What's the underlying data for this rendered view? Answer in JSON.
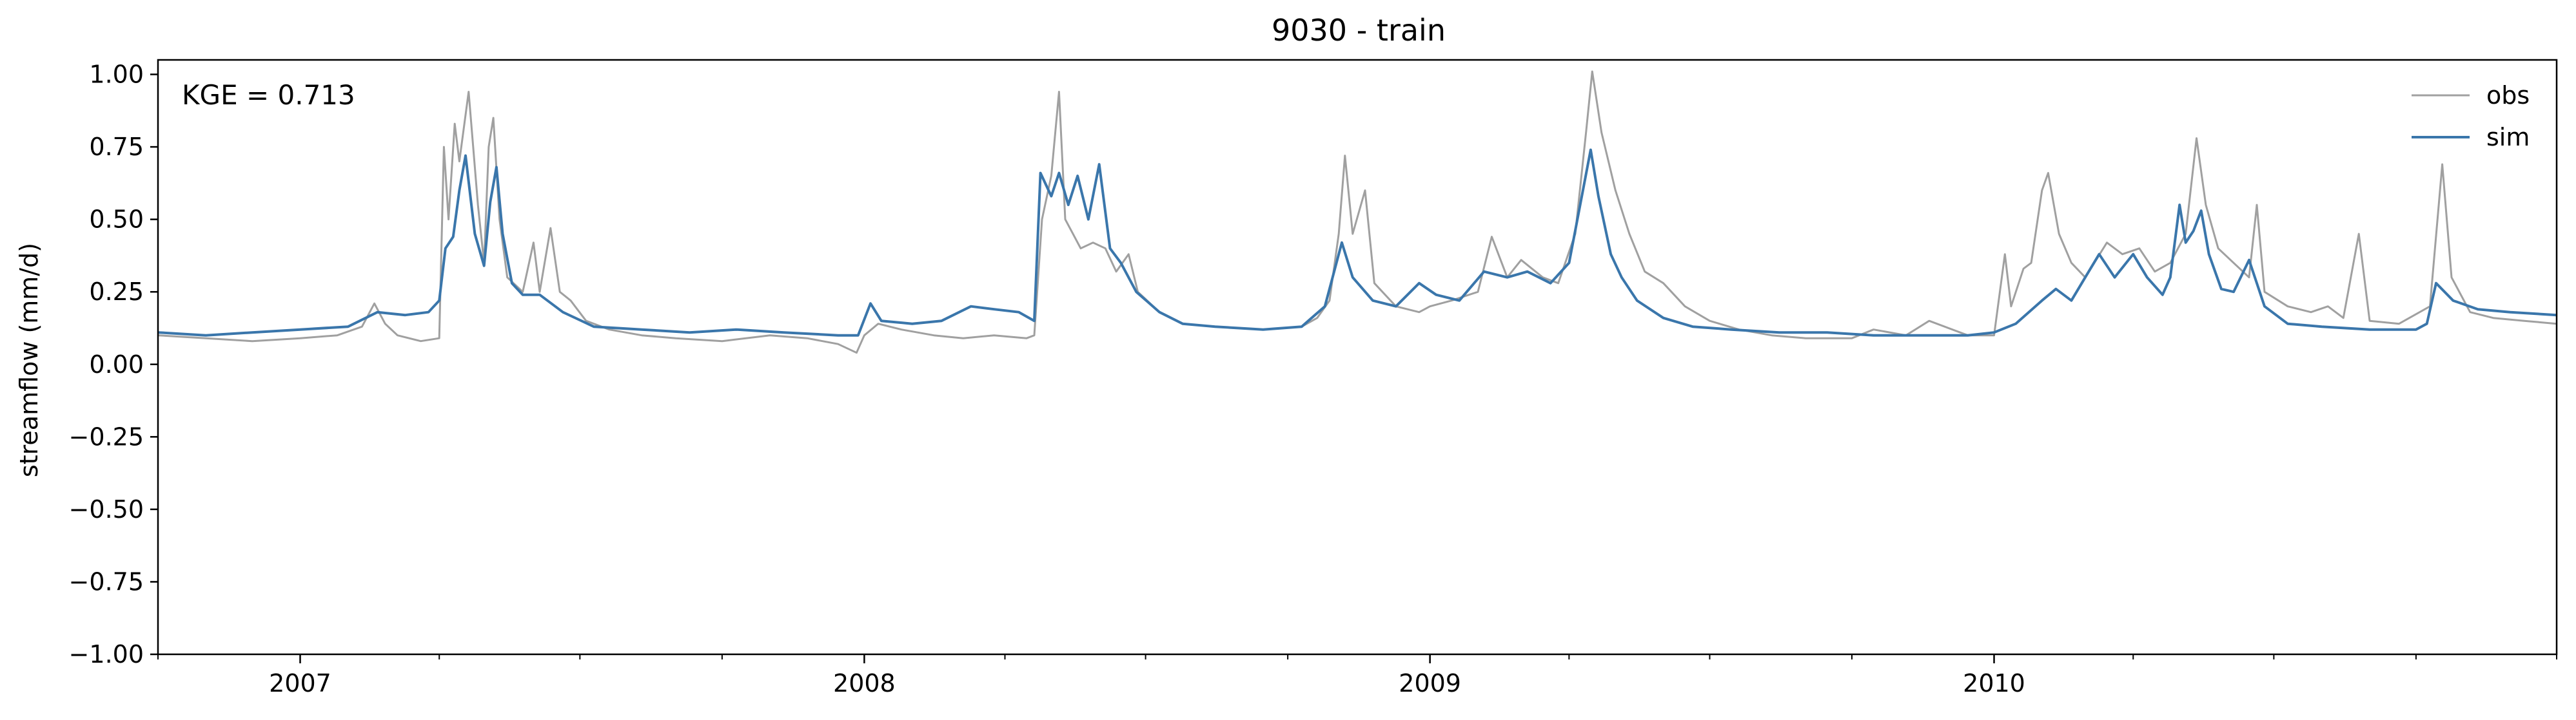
{
  "chart_data": {
    "type": "line",
    "title": "9030 - train",
    "xlabel": "",
    "ylabel": "streamflow (mm/d)",
    "annotation": "KGE = 0.713",
    "xlim": [
      "2006-10-01",
      "2010-12-31"
    ],
    "ylim": [
      -1.0,
      1.05
    ],
    "yticks": [
      1.0,
      0.75,
      0.5,
      0.25,
      0.0,
      -0.25,
      -0.5,
      -0.75,
      -1.0
    ],
    "ytick_labels": [
      "1.00",
      "0.75",
      "0.50",
      "0.25",
      "0.00",
      "−0.25",
      "−0.50",
      "−0.75",
      "−1.00"
    ],
    "xticks_major": [
      {
        "date": "2007-01-01",
        "label": "2007"
      },
      {
        "date": "2008-01-01",
        "label": "2008"
      },
      {
        "date": "2009-01-01",
        "label": "2009"
      },
      {
        "date": "2010-01-01",
        "label": "2010"
      }
    ],
    "xticks_minor": [
      "2006-10-01",
      "2007-04-01",
      "2007-07-01",
      "2007-10-01",
      "2008-04-01",
      "2008-07-01",
      "2008-10-01",
      "2009-04-01",
      "2009-07-01",
      "2009-10-01",
      "2010-04-01",
      "2010-07-01",
      "2010-10-01",
      "2010-12-31"
    ],
    "grid": false,
    "legend_position": "top-right",
    "series": [
      {
        "name": "obs",
        "color": "#a0a0a0",
        "points": [
          [
            "2006-10-01",
            0.1
          ],
          [
            "2006-11-01",
            0.09
          ],
          [
            "2006-12-01",
            0.08
          ],
          [
            "2007-01-01",
            0.09
          ],
          [
            "2007-01-25",
            0.1
          ],
          [
            "2007-02-10",
            0.13
          ],
          [
            "2007-02-18",
            0.21
          ],
          [
            "2007-02-25",
            0.14
          ],
          [
            "2007-03-05",
            0.1
          ],
          [
            "2007-03-20",
            0.08
          ],
          [
            "2007-04-01",
            0.09
          ],
          [
            "2007-04-04",
            0.75
          ],
          [
            "2007-04-07",
            0.5
          ],
          [
            "2007-04-11",
            0.83
          ],
          [
            "2007-04-14",
            0.7
          ],
          [
            "2007-04-20",
            0.94
          ],
          [
            "2007-04-26",
            0.55
          ],
          [
            "2007-04-30",
            0.35
          ],
          [
            "2007-05-03",
            0.75
          ],
          [
            "2007-05-06",
            0.85
          ],
          [
            "2007-05-10",
            0.5
          ],
          [
            "2007-05-15",
            0.3
          ],
          [
            "2007-05-25",
            0.25
          ],
          [
            "2007-06-01",
            0.42
          ],
          [
            "2007-06-05",
            0.25
          ],
          [
            "2007-06-12",
            0.47
          ],
          [
            "2007-06-18",
            0.25
          ],
          [
            "2007-06-25",
            0.22
          ],
          [
            "2007-07-05",
            0.15
          ],
          [
            "2007-07-20",
            0.12
          ],
          [
            "2007-08-10",
            0.1
          ],
          [
            "2007-09-01",
            0.09
          ],
          [
            "2007-10-01",
            0.08
          ],
          [
            "2007-11-01",
            0.1
          ],
          [
            "2007-11-25",
            0.09
          ],
          [
            "2007-12-15",
            0.07
          ],
          [
            "2007-12-27",
            0.04
          ],
          [
            "2008-01-01",
            0.1
          ],
          [
            "2008-01-10",
            0.14
          ],
          [
            "2008-01-25",
            0.12
          ],
          [
            "2008-02-15",
            0.1
          ],
          [
            "2008-03-05",
            0.09
          ],
          [
            "2008-03-25",
            0.1
          ],
          [
            "2008-04-15",
            0.09
          ],
          [
            "2008-04-20",
            0.1
          ],
          [
            "2008-04-25",
            0.5
          ],
          [
            "2008-05-01",
            0.65
          ],
          [
            "2008-05-06",
            0.94
          ],
          [
            "2008-05-10",
            0.5
          ],
          [
            "2008-05-15",
            0.45
          ],
          [
            "2008-05-20",
            0.4
          ],
          [
            "2008-05-28",
            0.42
          ],
          [
            "2008-06-05",
            0.4
          ],
          [
            "2008-06-12",
            0.32
          ],
          [
            "2008-06-20",
            0.38
          ],
          [
            "2008-06-26",
            0.25
          ],
          [
            "2008-07-10",
            0.18
          ],
          [
            "2008-07-25",
            0.14
          ],
          [
            "2008-08-15",
            0.13
          ],
          [
            "2008-09-15",
            0.12
          ],
          [
            "2008-10-10",
            0.13
          ],
          [
            "2008-10-20",
            0.16
          ],
          [
            "2008-10-28",
            0.22
          ],
          [
            "2008-11-03",
            0.45
          ],
          [
            "2008-11-07",
            0.72
          ],
          [
            "2008-11-12",
            0.45
          ],
          [
            "2008-11-20",
            0.6
          ],
          [
            "2008-11-26",
            0.28
          ],
          [
            "2008-12-10",
            0.2
          ],
          [
            "2008-12-25",
            0.18
          ],
          [
            "2009-01-01",
            0.2
          ],
          [
            "2009-01-15",
            0.22
          ],
          [
            "2009-02-01",
            0.25
          ],
          [
            "2009-02-10",
            0.44
          ],
          [
            "2009-02-20",
            0.3
          ],
          [
            "2009-03-01",
            0.36
          ],
          [
            "2009-03-15",
            0.3
          ],
          [
            "2009-03-25",
            0.28
          ],
          [
            "2009-04-05",
            0.45
          ],
          [
            "2009-04-12",
            0.8
          ],
          [
            "2009-04-16",
            1.01
          ],
          [
            "2009-04-22",
            0.8
          ],
          [
            "2009-05-01",
            0.6
          ],
          [
            "2009-05-10",
            0.45
          ],
          [
            "2009-05-20",
            0.32
          ],
          [
            "2009-06-01",
            0.28
          ],
          [
            "2009-06-15",
            0.2
          ],
          [
            "2009-07-01",
            0.15
          ],
          [
            "2009-07-20",
            0.12
          ],
          [
            "2009-08-10",
            0.1
          ],
          [
            "2009-09-01",
            0.09
          ],
          [
            "2009-10-01",
            0.09
          ],
          [
            "2009-10-15",
            0.12
          ],
          [
            "2009-11-05",
            0.1
          ],
          [
            "2009-11-20",
            0.15
          ],
          [
            "2009-12-15",
            0.1
          ],
          [
            "2010-01-01",
            0.1
          ],
          [
            "2010-01-08",
            0.38
          ],
          [
            "2010-01-12",
            0.2
          ],
          [
            "2010-01-20",
            0.33
          ],
          [
            "2010-01-25",
            0.35
          ],
          [
            "2010-02-01",
            0.6
          ],
          [
            "2010-02-05",
            0.66
          ],
          [
            "2010-02-12",
            0.45
          ],
          [
            "2010-02-20",
            0.35
          ],
          [
            "2010-03-01",
            0.3
          ],
          [
            "2010-03-15",
            0.42
          ],
          [
            "2010-03-25",
            0.38
          ],
          [
            "2010-04-05",
            0.4
          ],
          [
            "2010-04-15",
            0.32
          ],
          [
            "2010-04-25",
            0.35
          ],
          [
            "2010-05-05",
            0.45
          ],
          [
            "2010-05-12",
            0.78
          ],
          [
            "2010-05-18",
            0.55
          ],
          [
            "2010-05-26",
            0.4
          ],
          [
            "2010-06-05",
            0.35
          ],
          [
            "2010-06-15",
            0.3
          ],
          [
            "2010-06-20",
            0.55
          ],
          [
            "2010-06-25",
            0.25
          ],
          [
            "2010-07-10",
            0.2
          ],
          [
            "2010-07-25",
            0.18
          ],
          [
            "2010-08-05",
            0.2
          ],
          [
            "2010-08-15",
            0.16
          ],
          [
            "2010-08-25",
            0.45
          ],
          [
            "2010-09-01",
            0.15
          ],
          [
            "2010-09-20",
            0.14
          ],
          [
            "2010-10-10",
            0.2
          ],
          [
            "2010-10-18",
            0.69
          ],
          [
            "2010-10-24",
            0.3
          ],
          [
            "2010-11-05",
            0.18
          ],
          [
            "2010-11-20",
            0.16
          ],
          [
            "2010-12-10",
            0.15
          ],
          [
            "2010-12-31",
            0.14
          ]
        ]
      },
      {
        "name": "sim",
        "color": "#3a76ab",
        "points": [
          [
            "2006-10-01",
            0.11
          ],
          [
            "2006-11-01",
            0.1
          ],
          [
            "2006-12-01",
            0.11
          ],
          [
            "2007-01-01",
            0.12
          ],
          [
            "2007-02-01",
            0.13
          ],
          [
            "2007-02-20",
            0.18
          ],
          [
            "2007-03-10",
            0.17
          ],
          [
            "2007-03-25",
            0.18
          ],
          [
            "2007-04-01",
            0.22
          ],
          [
            "2007-04-05",
            0.4
          ],
          [
            "2007-04-10",
            0.44
          ],
          [
            "2007-04-14",
            0.6
          ],
          [
            "2007-04-18",
            0.72
          ],
          [
            "2007-04-24",
            0.45
          ],
          [
            "2007-04-30",
            0.34
          ],
          [
            "2007-05-04",
            0.56
          ],
          [
            "2007-05-08",
            0.68
          ],
          [
            "2007-05-12",
            0.45
          ],
          [
            "2007-05-18",
            0.28
          ],
          [
            "2007-05-25",
            0.24
          ],
          [
            "2007-06-05",
            0.24
          ],
          [
            "2007-06-20",
            0.18
          ],
          [
            "2007-07-10",
            0.13
          ],
          [
            "2007-08-10",
            0.12
          ],
          [
            "2007-09-10",
            0.11
          ],
          [
            "2007-10-10",
            0.12
          ],
          [
            "2007-11-10",
            0.11
          ],
          [
            "2007-12-15",
            0.1
          ],
          [
            "2007-12-28",
            0.1
          ],
          [
            "2008-01-05",
            0.21
          ],
          [
            "2008-01-12",
            0.15
          ],
          [
            "2008-02-01",
            0.14
          ],
          [
            "2008-02-20",
            0.15
          ],
          [
            "2008-03-10",
            0.2
          ],
          [
            "2008-03-25",
            0.19
          ],
          [
            "2008-04-10",
            0.18
          ],
          [
            "2008-04-20",
            0.15
          ],
          [
            "2008-04-24",
            0.66
          ],
          [
            "2008-05-01",
            0.58
          ],
          [
            "2008-05-06",
            0.66
          ],
          [
            "2008-05-12",
            0.55
          ],
          [
            "2008-05-18",
            0.65
          ],
          [
            "2008-05-25",
            0.5
          ],
          [
            "2008-06-01",
            0.69
          ],
          [
            "2008-06-08",
            0.4
          ],
          [
            "2008-06-15",
            0.35
          ],
          [
            "2008-06-25",
            0.25
          ],
          [
            "2008-07-10",
            0.18
          ],
          [
            "2008-07-25",
            0.14
          ],
          [
            "2008-08-15",
            0.13
          ],
          [
            "2008-09-15",
            0.12
          ],
          [
            "2008-10-10",
            0.13
          ],
          [
            "2008-10-25",
            0.2
          ],
          [
            "2008-11-05",
            0.42
          ],
          [
            "2008-11-12",
            0.3
          ],
          [
            "2008-11-25",
            0.22
          ],
          [
            "2008-12-10",
            0.2
          ],
          [
            "2008-12-25",
            0.28
          ],
          [
            "2009-01-05",
            0.24
          ],
          [
            "2009-01-20",
            0.22
          ],
          [
            "2009-02-05",
            0.32
          ],
          [
            "2009-02-20",
            0.3
          ],
          [
            "2009-03-05",
            0.32
          ],
          [
            "2009-03-20",
            0.28
          ],
          [
            "2009-04-01",
            0.35
          ],
          [
            "2009-04-10",
            0.6
          ],
          [
            "2009-04-15",
            0.74
          ],
          [
            "2009-04-20",
            0.58
          ],
          [
            "2009-04-28",
            0.38
          ],
          [
            "2009-05-05",
            0.3
          ],
          [
            "2009-05-15",
            0.22
          ],
          [
            "2009-06-01",
            0.16
          ],
          [
            "2009-06-20",
            0.13
          ],
          [
            "2009-07-15",
            0.12
          ],
          [
            "2009-08-15",
            0.11
          ],
          [
            "2009-09-15",
            0.11
          ],
          [
            "2009-10-15",
            0.1
          ],
          [
            "2009-11-15",
            0.1
          ],
          [
            "2009-12-15",
            0.1
          ],
          [
            "2010-01-01",
            0.11
          ],
          [
            "2010-01-15",
            0.14
          ],
          [
            "2010-02-01",
            0.22
          ],
          [
            "2010-02-10",
            0.26
          ],
          [
            "2010-02-20",
            0.22
          ],
          [
            "2010-03-01",
            0.3
          ],
          [
            "2010-03-10",
            0.38
          ],
          [
            "2010-03-20",
            0.3
          ],
          [
            "2010-04-01",
            0.38
          ],
          [
            "2010-04-10",
            0.3
          ],
          [
            "2010-04-20",
            0.24
          ],
          [
            "2010-04-25",
            0.3
          ],
          [
            "2010-05-01",
            0.55
          ],
          [
            "2010-05-05",
            0.42
          ],
          [
            "2010-05-10",
            0.46
          ],
          [
            "2010-05-15",
            0.53
          ],
          [
            "2010-05-20",
            0.38
          ],
          [
            "2010-05-28",
            0.26
          ],
          [
            "2010-06-05",
            0.25
          ],
          [
            "2010-06-15",
            0.36
          ],
          [
            "2010-06-25",
            0.2
          ],
          [
            "2010-07-10",
            0.14
          ],
          [
            "2010-08-01",
            0.13
          ],
          [
            "2010-09-01",
            0.12
          ],
          [
            "2010-10-01",
            0.12
          ],
          [
            "2010-10-08",
            0.14
          ],
          [
            "2010-10-14",
            0.28
          ],
          [
            "2010-10-25",
            0.22
          ],
          [
            "2010-11-10",
            0.19
          ],
          [
            "2010-12-01",
            0.18
          ],
          [
            "2010-12-31",
            0.17
          ]
        ]
      }
    ]
  }
}
